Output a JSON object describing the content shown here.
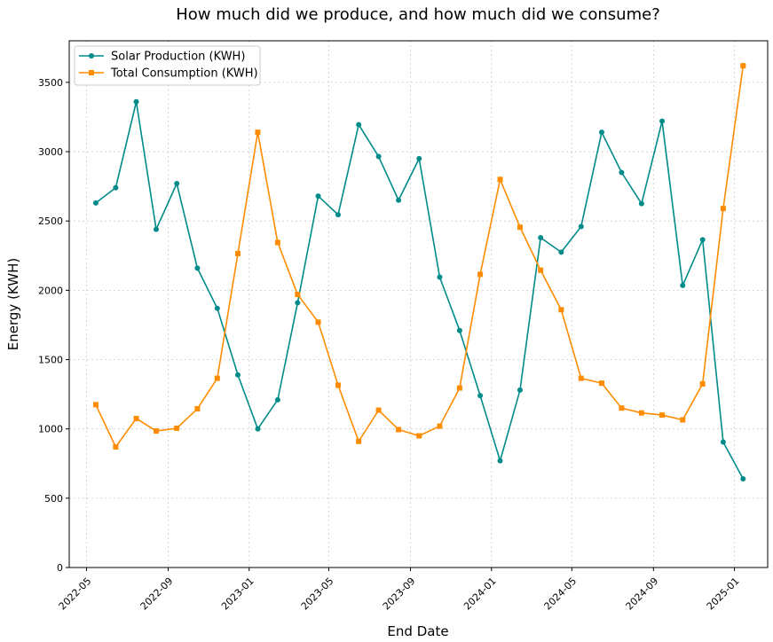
{
  "chart_data": {
    "type": "line",
    "title": "How much did we produce, and how much did we consume?",
    "xlabel": "End Date",
    "ylabel": "Energy (KWH)",
    "ylim": [
      0,
      3800
    ],
    "yticks": [
      0,
      500,
      1000,
      1500,
      2000,
      2500,
      3000,
      3500
    ],
    "xlim": [
      "2022-04-05",
      "2025-02-20"
    ],
    "xticks": [
      "2022-05",
      "2022-09",
      "2023-01",
      "2023-05",
      "2023-09",
      "2024-01",
      "2024-05",
      "2024-09",
      "2025-01"
    ],
    "grid": true,
    "legend_position": "top-left",
    "x": [
      "2022-05-15",
      "2022-06-14",
      "2022-07-15",
      "2022-08-14",
      "2022-09-14",
      "2022-10-15",
      "2022-11-14",
      "2022-12-15",
      "2023-01-14",
      "2023-02-13",
      "2023-03-15",
      "2023-04-15",
      "2023-05-15",
      "2023-06-15",
      "2023-07-15",
      "2023-08-14",
      "2023-09-14",
      "2023-10-15",
      "2023-11-14",
      "2023-12-15",
      "2024-01-14",
      "2024-02-13",
      "2024-03-15",
      "2024-04-15",
      "2024-05-15",
      "2024-06-15",
      "2024-07-15",
      "2024-08-14",
      "2024-09-14",
      "2024-10-15",
      "2024-11-14",
      "2024-12-15",
      "2025-01-14"
    ],
    "series": [
      {
        "name": "Solar Production (KWH)",
        "color": "#008b8b",
        "marker": "circle",
        "values": [
          2630,
          2740,
          3360,
          2440,
          2770,
          2160,
          1870,
          1390,
          1000,
          1210,
          1910,
          2680,
          2545,
          3195,
          2965,
          2650,
          2950,
          2095,
          1710,
          1240,
          770,
          1280,
          2380,
          2275,
          2460,
          3140,
          2850,
          2625,
          3220,
          2035,
          2365,
          905,
          640
        ]
      },
      {
        "name": "Total Consumption (KWH)",
        "color": "#ff8c00",
        "marker": "square",
        "values": [
          1175,
          870,
          1075,
          985,
          1005,
          1145,
          1365,
          2265,
          3140,
          2345,
          1970,
          1770,
          1315,
          910,
          1135,
          995,
          950,
          1020,
          1295,
          2115,
          2800,
          2455,
          2145,
          1860,
          1365,
          1330,
          1150,
          1115,
          1100,
          1065,
          1325,
          2590,
          3620
        ]
      }
    ]
  }
}
